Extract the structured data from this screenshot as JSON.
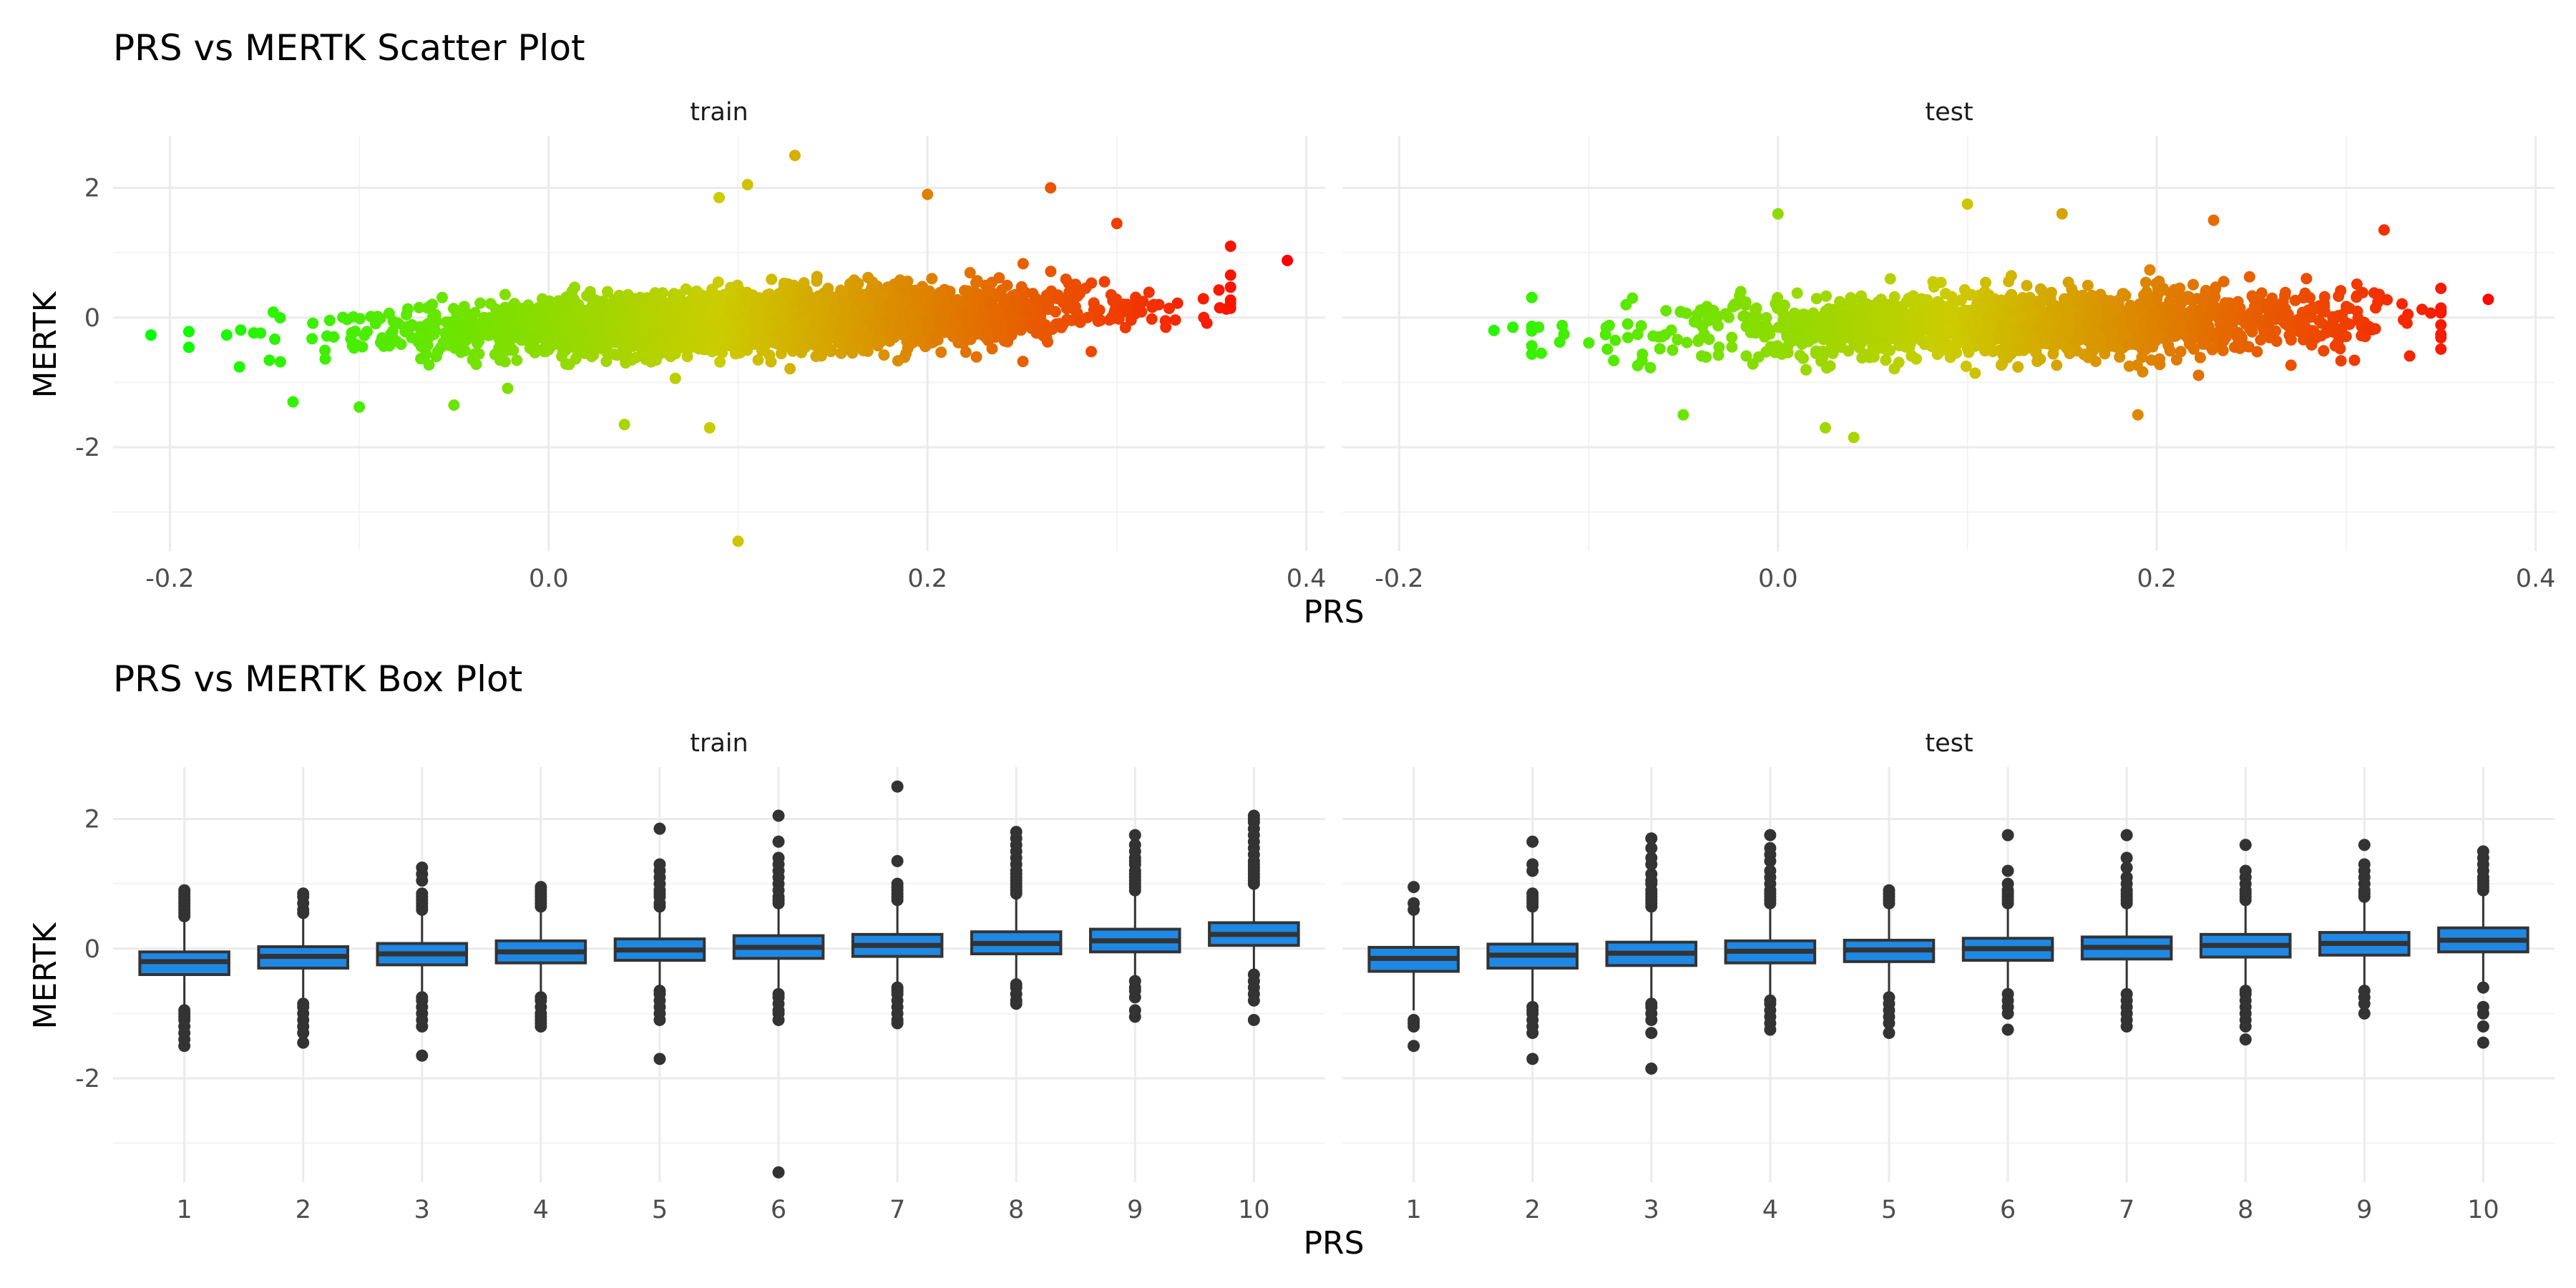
{
  "chart_data": [
    {
      "type": "scatter",
      "title": "PRS vs MERTK Scatter Plot",
      "xlabel": "PRS",
      "ylabel": "MERTK",
      "xlim": [
        -0.23,
        0.41
      ],
      "ylim": [
        -3.6,
        2.8
      ],
      "x_ticks": [
        -0.2,
        0.0,
        0.2,
        0.4
      ],
      "x_tick_labels": [
        "-0.2",
        "0.0",
        "0.2",
        "0.4"
      ],
      "y_ticks": [
        -2,
        0,
        2
      ],
      "y_tick_labels": [
        "-2",
        "0",
        "2"
      ],
      "grid": true,
      "color_scale": {
        "low": "#00ff00",
        "mid": "#cccc00",
        "high": "#ff0000",
        "domain": [
          -0.21,
          0.39
        ]
      },
      "panels": [
        {
          "name": "train",
          "trend": {
            "slope": 3.0,
            "intercept": -0.15,
            "noise_sd": 0.22
          },
          "x_range": [
            -0.21,
            0.39
          ],
          "n_points": 3200,
          "outliers": [
            {
              "x": -0.21,
              "y": -0.27
            },
            {
              "x": -0.19,
              "y": -0.46
            },
            {
              "x": -0.17,
              "y": -0.27
            },
            {
              "x": 0.1,
              "y": -3.45
            },
            {
              "x": 0.13,
              "y": 2.5
            },
            {
              "x": 0.105,
              "y": 2.05
            },
            {
              "x": 0.09,
              "y": 1.85
            },
            {
              "x": 0.265,
              "y": 2.0
            },
            {
              "x": 0.39,
              "y": 0.88
            },
            {
              "x": 0.085,
              "y": -1.7
            },
            {
              "x": 0.04,
              "y": -1.65
            },
            {
              "x": -0.1,
              "y": -1.38
            },
            {
              "x": -0.135,
              "y": -1.3
            },
            {
              "x": 0.2,
              "y": 1.9
            },
            {
              "x": 0.3,
              "y": 1.45
            },
            {
              "x": 0.36,
              "y": 1.1
            },
            {
              "x": -0.05,
              "y": -1.35
            }
          ]
        },
        {
          "name": "test",
          "trend": {
            "slope": 1.55,
            "intercept": -0.15,
            "noise_sd": 0.24
          },
          "x_range": [
            -0.15,
            0.38
          ],
          "n_points": 1700,
          "outliers": [
            {
              "x": -0.15,
              "y": -0.2
            },
            {
              "x": -0.14,
              "y": -0.15
            },
            {
              "x": -0.125,
              "y": -0.55
            },
            {
              "x": 0.375,
              "y": 0.28
            },
            {
              "x": 0.32,
              "y": 1.35
            },
            {
              "x": 0.04,
              "y": -1.85
            },
            {
              "x": 0.025,
              "y": -1.7
            },
            {
              "x": -0.05,
              "y": -1.5
            },
            {
              "x": 0.0,
              "y": 1.6
            },
            {
              "x": 0.1,
              "y": 1.75
            },
            {
              "x": 0.15,
              "y": 1.6
            },
            {
              "x": 0.19,
              "y": -1.5
            },
            {
              "x": 0.23,
              "y": 1.5
            },
            {
              "x": 0.35,
              "y": 0.45
            }
          ]
        }
      ]
    },
    {
      "type": "box",
      "title": "PRS vs MERTK Box Plot",
      "xlabel": "PRS",
      "ylabel": "MERTK",
      "categories": [
        "1",
        "2",
        "3",
        "4",
        "5",
        "6",
        "7",
        "8",
        "9",
        "10"
      ],
      "ylim": [
        -3.6,
        2.8
      ],
      "y_ticks": [
        -2,
        0,
        2
      ],
      "y_tick_labels": [
        "-2",
        "0",
        "2"
      ],
      "box_fill": "#1e88e5",
      "box_stroke": "#333333",
      "grid": true,
      "panels": [
        {
          "name": "train",
          "boxes": [
            {
              "q1": -0.4,
              "median": -0.2,
              "q3": -0.05,
              "wlo": -0.9,
              "whi": 0.45,
              "outliers": [
                0.5,
                0.55,
                0.6,
                0.65,
                0.7,
                0.75,
                0.8,
                0.85,
                0.9,
                -0.95,
                -1.0,
                -1.05,
                -1.1,
                -1.2,
                -1.3,
                -1.4,
                -1.5
              ]
            },
            {
              "q1": -0.3,
              "median": -0.12,
              "q3": 0.03,
              "wlo": -0.78,
              "whi": 0.5,
              "outliers": [
                0.55,
                0.6,
                0.7,
                0.8,
                0.85,
                -0.85,
                -0.9,
                -1.0,
                -1.1,
                -1.2,
                -1.3,
                -1.45
              ]
            },
            {
              "q1": -0.25,
              "median": -0.08,
              "q3": 0.08,
              "wlo": -0.7,
              "whi": 0.55,
              "outliers": [
                0.6,
                0.65,
                0.7,
                0.75,
                0.8,
                0.85,
                1.05,
                1.15,
                1.25,
                -0.75,
                -0.8,
                -0.9,
                -1.0,
                -1.1,
                -1.2,
                -1.65
              ]
            },
            {
              "q1": -0.22,
              "median": -0.05,
              "q3": 0.12,
              "wlo": -0.72,
              "whi": 0.6,
              "outliers": [
                0.65,
                0.7,
                0.75,
                0.8,
                0.85,
                0.9,
                0.95,
                -0.75,
                -0.8,
                -0.9,
                -1.0,
                -1.05,
                -1.1,
                -1.15,
                -1.2
              ]
            },
            {
              "q1": -0.18,
              "median": -0.02,
              "q3": 0.15,
              "wlo": -0.6,
              "whi": 0.62,
              "outliers": [
                0.65,
                0.7,
                0.8,
                0.85,
                0.9,
                1.0,
                1.1,
                1.2,
                1.3,
                1.85,
                -0.65,
                -0.7,
                -0.8,
                -0.9,
                -1.0,
                -1.1,
                -1.7
              ]
            },
            {
              "q1": -0.15,
              "median": 0.02,
              "q3": 0.2,
              "wlo": -0.65,
              "whi": 0.68,
              "outliers": [
                0.7,
                0.75,
                0.8,
                0.9,
                1.0,
                1.1,
                1.2,
                1.3,
                1.4,
                1.65,
                2.05,
                -0.7,
                -0.75,
                -0.85,
                -0.95,
                -1.0,
                -1.1,
                -3.45
              ]
            },
            {
              "q1": -0.12,
              "median": 0.05,
              "q3": 0.22,
              "wlo": -0.55,
              "whi": 0.72,
              "outliers": [
                0.75,
                0.8,
                0.85,
                0.9,
                0.95,
                1.0,
                1.35,
                2.5,
                -0.6,
                -0.65,
                -0.7,
                -0.8,
                -0.9,
                -1.0,
                -1.1,
                -1.15
              ]
            },
            {
              "q1": -0.08,
              "median": 0.08,
              "q3": 0.26,
              "wlo": -0.5,
              "whi": 0.8,
              "outliers": [
                0.85,
                0.9,
                0.95,
                1.0,
                1.05,
                1.1,
                1.15,
                1.2,
                1.3,
                1.4,
                1.5,
                1.6,
                1.7,
                1.8,
                -0.55,
                -0.6,
                -0.7,
                -0.8,
                -0.85
              ]
            },
            {
              "q1": -0.05,
              "median": 0.12,
              "q3": 0.3,
              "wlo": -0.48,
              "whi": 0.85,
              "outliers": [
                0.9,
                0.95,
                1.0,
                1.05,
                1.1,
                1.15,
                1.2,
                1.3,
                1.35,
                1.4,
                1.5,
                1.6,
                1.75,
                -0.5,
                -0.6,
                -0.65,
                -0.75,
                -0.95,
                -1.05
              ]
            },
            {
              "q1": 0.05,
              "median": 0.22,
              "q3": 0.4,
              "wlo": -0.35,
              "whi": 0.95,
              "outliers": [
                1.0,
                1.05,
                1.1,
                1.15,
                1.2,
                1.25,
                1.3,
                1.35,
                1.45,
                1.55,
                1.65,
                1.75,
                1.85,
                1.95,
                2.0,
                2.05,
                -0.4,
                -0.5,
                -0.6,
                -0.7,
                -0.8,
                -1.1
              ]
            }
          ]
        },
        {
          "name": "test",
          "boxes": [
            {
              "q1": -0.35,
              "median": -0.15,
              "q3": 0.02,
              "wlo": -0.95,
              "whi": 0.55,
              "outliers": [
                0.6,
                0.7,
                0.95,
                -1.1,
                -1.15,
                -1.2,
                -1.5
              ]
            },
            {
              "q1": -0.3,
              "median": -0.1,
              "q3": 0.07,
              "wlo": -0.85,
              "whi": 0.6,
              "outliers": [
                0.65,
                0.7,
                0.75,
                0.8,
                0.85,
                1.2,
                1.3,
                1.65,
                -0.9,
                -0.95,
                -1.0,
                -1.1,
                -1.2,
                -1.3,
                -1.7
              ]
            },
            {
              "q1": -0.26,
              "median": -0.07,
              "q3": 0.1,
              "wlo": -0.8,
              "whi": 0.62,
              "outliers": [
                0.65,
                0.7,
                0.75,
                0.8,
                0.85,
                0.9,
                1.0,
                1.05,
                1.15,
                1.3,
                1.4,
                1.55,
                1.7,
                -0.85,
                -0.9,
                -1.0,
                -1.1,
                -1.3,
                -1.85
              ]
            },
            {
              "q1": -0.22,
              "median": -0.04,
              "q3": 0.12,
              "wlo": -0.75,
              "whi": 0.65,
              "outliers": [
                0.7,
                0.75,
                0.8,
                0.85,
                0.9,
                1.0,
                1.1,
                1.2,
                1.35,
                1.45,
                1.55,
                1.75,
                -0.8,
                -0.85,
                -0.95,
                -1.05,
                -1.15,
                -1.25
              ]
            },
            {
              "q1": -0.2,
              "median": -0.02,
              "q3": 0.13,
              "wlo": -0.72,
              "whi": 0.65,
              "outliers": [
                0.7,
                0.75,
                0.8,
                0.85,
                0.9,
                -0.75,
                -0.85,
                -0.95,
                -1.05,
                -1.15,
                -1.3
              ]
            },
            {
              "q1": -0.18,
              "median": 0.0,
              "q3": 0.16,
              "wlo": -0.68,
              "whi": 0.67,
              "outliers": [
                0.7,
                0.75,
                0.8,
                0.85,
                0.9,
                1.0,
                1.2,
                1.75,
                -0.7,
                -0.8,
                -0.9,
                -1.0,
                -1.25
              ]
            },
            {
              "q1": -0.16,
              "median": 0.02,
              "q3": 0.18,
              "wlo": -0.65,
              "whi": 0.68,
              "outliers": [
                0.7,
                0.75,
                0.8,
                0.85,
                0.9,
                1.0,
                1.1,
                1.25,
                1.4,
                1.75,
                -0.7,
                -0.8,
                -0.9,
                -1.0,
                -1.1,
                -1.2
              ]
            },
            {
              "q1": -0.13,
              "median": 0.05,
              "q3": 0.22,
              "wlo": -0.62,
              "whi": 0.72,
              "outliers": [
                0.75,
                0.8,
                0.85,
                0.9,
                1.0,
                1.1,
                1.2,
                1.6,
                -0.65,
                -0.7,
                -0.8,
                -0.9,
                -1.0,
                -1.1,
                -1.2,
                -1.4
              ]
            },
            {
              "q1": -0.1,
              "median": 0.08,
              "q3": 0.25,
              "wlo": -0.6,
              "whi": 0.75,
              "outliers": [
                0.8,
                0.85,
                0.9,
                1.0,
                1.1,
                1.2,
                1.3,
                1.6,
                -0.65,
                -0.75,
                -0.85,
                -1.0
              ]
            },
            {
              "q1": -0.05,
              "median": 0.13,
              "q3": 0.32,
              "wlo": -0.55,
              "whi": 0.85,
              "outliers": [
                0.9,
                0.95,
                1.0,
                1.05,
                1.1,
                1.2,
                1.3,
                1.4,
                1.5,
                -0.6,
                -0.9,
                -1.0,
                -1.2,
                -1.45
              ]
            }
          ]
        }
      ]
    }
  ]
}
